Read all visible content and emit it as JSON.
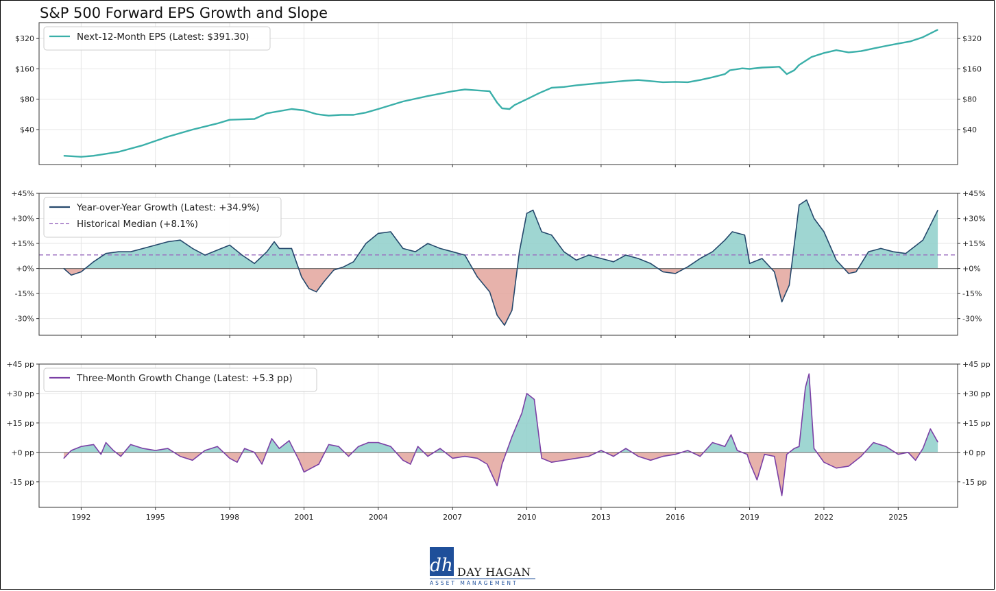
{
  "title": "S&P 500 Forward EPS Growth and Slope",
  "colors": {
    "eps": "#3aafa9",
    "yoy": "#24476b",
    "median": "#9a6bbf",
    "slope": "#7a3fa5",
    "pos_fill": "#8ecfca",
    "neg_fill": "#e3a49c"
  },
  "x_ticks": [
    "1992",
    "1995",
    "1998",
    "2001",
    "2004",
    "2007",
    "2010",
    "2013",
    "2016",
    "2019",
    "2022",
    "2025"
  ],
  "logo": {
    "name": "DAY HAGAN",
    "sub": "ASSET MANAGEMENT",
    "mark": "dh"
  },
  "chart_data": [
    {
      "type": "line",
      "panel": "eps",
      "legend": "Next-12-Month EPS (Latest: $391.30)",
      "y_scale": "log2",
      "ylim": [
        18,
        460
      ],
      "y_ticks": [
        40,
        80,
        160,
        320
      ],
      "y_tick_labels": [
        "$40",
        "$80",
        "$160",
        "$320"
      ],
      "x": [
        1991.3,
        1992.0,
        1992.5,
        1993.5,
        1994.5,
        1995.5,
        1996.5,
        1997.5,
        1998.0,
        1999.0,
        1999.5,
        2000.5,
        2001.0,
        2001.5,
        2002.0,
        2002.5,
        2003.0,
        2003.5,
        2004.0,
        2005.0,
        2006.0,
        2007.0,
        2007.5,
        2008.0,
        2008.5,
        2008.8,
        2009.0,
        2009.3,
        2009.5,
        2010.0,
        2010.5,
        2011.0,
        2011.5,
        2012.0,
        2013.0,
        2014.0,
        2014.5,
        2015.0,
        2015.5,
        2016.0,
        2016.5,
        2017.0,
        2017.5,
        2018.0,
        2018.2,
        2018.7,
        2019.0,
        2019.5,
        2020.0,
        2020.2,
        2020.5,
        2020.8,
        2021.0,
        2021.5,
        2022.0,
        2022.5,
        2023.0,
        2023.5,
        2024.0,
        2024.5,
        2025.0,
        2025.5,
        2026.0,
        2026.6
      ],
      "values": [
        22,
        21.5,
        22,
        24,
        28,
        34,
        40,
        46,
        50,
        51,
        58,
        64,
        62,
        57,
        55,
        56,
        56,
        59,
        64,
        76,
        86,
        96,
        100,
        98,
        96,
        74,
        65,
        64,
        70,
        80,
        92,
        104,
        106,
        110,
        116,
        122,
        124,
        121,
        118,
        119,
        118,
        124,
        132,
        142,
        155,
        162,
        160,
        165,
        167,
        168,
        142,
        155,
        175,
        210,
        230,
        245,
        233,
        240,
        255,
        270,
        285,
        300,
        330,
        391.3
      ]
    },
    {
      "type": "area",
      "panel": "yoy",
      "legend": [
        "Year-over-Year Growth (Latest: +34.9%)",
        "Historical Median (+8.1%)"
      ],
      "median": 8.1,
      "ylim": [
        -40,
        45
      ],
      "y_ticks": [
        -30,
        -15,
        0,
        15,
        30,
        45
      ],
      "y_tick_labels": [
        "-30%",
        "-15%",
        "+0%",
        "+15%",
        "+30%",
        "+45%"
      ],
      "x": [
        1991.3,
        1991.6,
        1992.0,
        1992.5,
        1993.0,
        1993.5,
        1994.0,
        1994.5,
        1995.0,
        1995.5,
        1996.0,
        1996.5,
        1997.0,
        1997.5,
        1998.0,
        1998.5,
        1999.0,
        1999.5,
        1999.8,
        2000.0,
        2000.5,
        2000.9,
        2001.2,
        2001.5,
        2001.8,
        2002.2,
        2002.6,
        2003.0,
        2003.5,
        2004.0,
        2004.5,
        2005.0,
        2005.5,
        2006.0,
        2006.5,
        2007.0,
        2007.5,
        2008.0,
        2008.5,
        2008.8,
        2009.1,
        2009.4,
        2009.7,
        2010.0,
        2010.25,
        2010.6,
        2011.0,
        2011.5,
        2012.0,
        2012.5,
        2013.0,
        2013.5,
        2014.0,
        2014.5,
        2015.0,
        2015.5,
        2016.0,
        2016.5,
        2017.0,
        2017.5,
        2018.0,
        2018.3,
        2018.8,
        2019.0,
        2019.5,
        2020.0,
        2020.3,
        2020.6,
        2021.0,
        2021.3,
        2021.6,
        2022.0,
        2022.5,
        2023.0,
        2023.3,
        2023.8,
        2024.3,
        2024.8,
        2025.3,
        2026.0,
        2026.6
      ],
      "values": [
        0,
        -4,
        -2,
        4,
        9,
        10,
        10,
        12,
        14,
        16,
        17,
        12,
        8,
        11,
        14,
        8,
        3,
        10,
        16,
        12,
        12,
        -5,
        -12,
        -14,
        -8,
        -1,
        1,
        4,
        15,
        21,
        22,
        12,
        10,
        15,
        12,
        10,
        8,
        -5,
        -14,
        -28,
        -34,
        -25,
        10,
        33,
        35,
        22,
        20,
        10,
        5,
        8,
        6,
        4,
        8,
        6,
        3,
        -2,
        -3,
        1,
        6,
        10,
        17,
        22,
        20,
        3,
        6,
        -2,
        -20,
        -10,
        38,
        41,
        30,
        22,
        5,
        -3,
        -2,
        10,
        12,
        10,
        9,
        17,
        34.9
      ]
    },
    {
      "type": "area",
      "panel": "slope",
      "legend": "Three-Month Growth Change (Latest: +5.3 pp)",
      "ylim": [
        -28,
        45
      ],
      "y_ticks": [
        -15,
        0,
        15,
        30,
        45
      ],
      "y_tick_labels": [
        "-15 pp",
        "+0 pp",
        "+15 pp",
        "+30 pp",
        "+45 pp"
      ],
      "x": [
        1991.3,
        1991.6,
        1992.0,
        1992.5,
        1992.8,
        1993.0,
        1993.3,
        1993.6,
        1994.0,
        1994.5,
        1995.0,
        1995.5,
        1996.0,
        1996.5,
        1997.0,
        1997.5,
        1998.0,
        1998.3,
        1998.6,
        1999.0,
        1999.3,
        1999.7,
        2000.0,
        2000.4,
        2000.8,
        2001.0,
        2001.3,
        2001.6,
        2002.0,
        2002.4,
        2002.8,
        2003.2,
        2003.6,
        2004.0,
        2004.5,
        2005.0,
        2005.3,
        2005.6,
        2006.0,
        2006.5,
        2007.0,
        2007.5,
        2008.0,
        2008.4,
        2008.8,
        2009.0,
        2009.4,
        2009.8,
        2010.0,
        2010.3,
        2010.6,
        2011.0,
        2011.5,
        2012.0,
        2012.5,
        2013.0,
        2013.5,
        2014.0,
        2014.5,
        2015.0,
        2015.5,
        2016.0,
        2016.5,
        2017.0,
        2017.5,
        2018.0,
        2018.25,
        2018.5,
        2018.9,
        2019.0,
        2019.3,
        2019.6,
        2020.0,
        2020.3,
        2020.5,
        2020.8,
        2021.0,
        2021.25,
        2021.4,
        2021.6,
        2022.0,
        2022.5,
        2023.0,
        2023.5,
        2024.0,
        2024.5,
        2025.0,
        2025.4,
        2025.7,
        2026.0,
        2026.3,
        2026.6
      ],
      "values": [
        -3,
        1,
        3,
        4,
        -1,
        5,
        1,
        -2,
        4,
        2,
        1,
        2,
        -2,
        -4,
        1,
        3,
        -3,
        -5,
        2,
        0,
        -6,
        7,
        2,
        6,
        -4,
        -10,
        -8,
        -6,
        4,
        3,
        -2,
        3,
        5,
        5,
        3,
        -4,
        -6,
        3,
        -2,
        2,
        -3,
        -2,
        -3,
        -6,
        -17,
        -6,
        8,
        20,
        30,
        27,
        -3,
        -5,
        -4,
        -3,
        -2,
        1,
        -2,
        2,
        -2,
        -4,
        -2,
        -1,
        1,
        -2,
        5,
        3,
        9,
        1,
        -1,
        -5,
        -14,
        -1,
        -2,
        -22,
        -1,
        2,
        3,
        33,
        40,
        2,
        -5,
        -8,
        -7,
        -2,
        5,
        3,
        -1,
        0,
        -4,
        2,
        12,
        5.3
      ]
    }
  ]
}
